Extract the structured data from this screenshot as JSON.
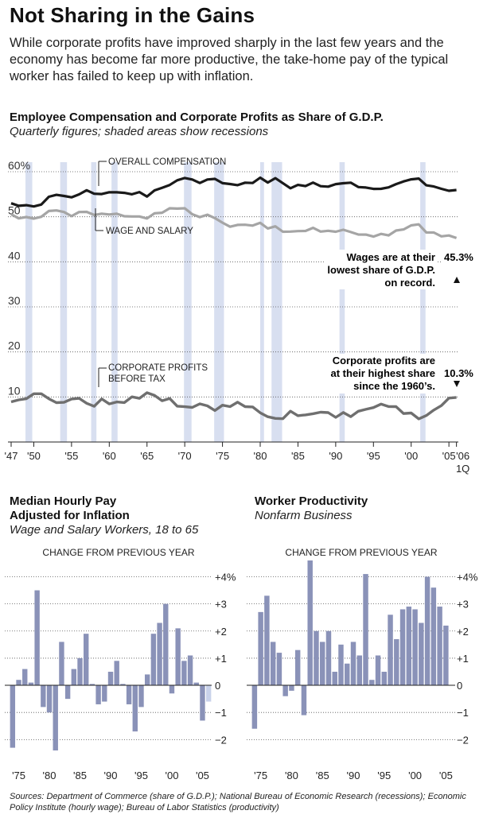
{
  "page": {
    "title": "Not Sharing in the Gains",
    "intro": "While corporate profits have improved sharply in the last few years and the economy has become far more productive, the take-home pay of the typical worker has failed to keep up with inflation.",
    "sources": "Sources: Department of Commerce (share of G.D.P.); National Bureau of Economic Research (recessions); Economic Policy Institute (hourly wage); Bureau of Labor Statistics (productivity)"
  },
  "chart_data": [
    {
      "type": "line",
      "title": "Employee Compensation and Corporate Profits as Share of G.D.P.",
      "subtitle": "Quarterly figures; shaded areas show recessions",
      "xlim": [
        1947,
        2006.25
      ],
      "ylim": [
        0,
        60
      ],
      "ytick_labels": [
        "60%",
        "50",
        "40",
        "30",
        "20",
        "10"
      ],
      "ytick_values": [
        60,
        50,
        40,
        30,
        20,
        10
      ],
      "xtick_values": [
        1947,
        1950,
        1955,
        1960,
        1965,
        1970,
        1975,
        1980,
        1985,
        1990,
        1995,
        2000,
        2005
      ],
      "xtick_labels": [
        "'47",
        "'50",
        "'55",
        "'60",
        "'65",
        "'70",
        "'75",
        "'80",
        "'85",
        "'90",
        "'95",
        "'00",
        "'05"
      ],
      "end_label": "'06",
      "end_sublabel": "1Q",
      "grid": true,
      "recessions": [
        [
          1948.9,
          1949.8
        ],
        [
          1953.5,
          1954.4
        ],
        [
          1957.6,
          1958.3
        ],
        [
          1960.3,
          1961.1
        ],
        [
          1969.9,
          1970.9
        ],
        [
          1973.9,
          1975.2
        ],
        [
          1980.0,
          1980.5
        ],
        [
          1981.5,
          1982.9
        ],
        [
          1990.5,
          1991.2
        ],
        [
          2001.2,
          2001.9
        ]
      ],
      "series": [
        {
          "name": "OVERALL COMPENSATION",
          "color": "#1a1a1a",
          "x": [
            1947,
            1948,
            1949,
            1950,
            1951,
            1952,
            1953,
            1954,
            1955,
            1956,
            1957,
            1958,
            1959,
            1960,
            1961,
            1962,
            1963,
            1964,
            1965,
            1966,
            1967,
            1968,
            1969,
            1970,
            1971,
            1972,
            1973,
            1974,
            1975,
            1976,
            1977,
            1978,
            1979,
            1980,
            1981,
            1982,
            1983,
            1984,
            1985,
            1986,
            1987,
            1988,
            1989,
            1990,
            1991,
            1992,
            1993,
            1994,
            1995,
            1996,
            1997,
            1998,
            1999,
            2000,
            2001,
            2002,
            2003,
            2004,
            2005,
            2006
          ],
          "y": [
            53.0,
            52.3,
            52.8,
            52.0,
            53.0,
            54.2,
            55.0,
            54.6,
            54.2,
            55.2,
            55.6,
            55.4,
            54.8,
            55.6,
            55.4,
            55.2,
            55.2,
            55.2,
            54.8,
            55.6,
            56.6,
            57.0,
            58.0,
            58.8,
            58.0,
            57.8,
            58.0,
            58.6,
            57.4,
            57.2,
            57.2,
            57.3,
            57.8,
            58.4,
            57.8,
            58.5,
            57.4,
            56.5,
            56.8,
            57.1,
            57.3,
            57.0,
            56.6,
            57.2,
            57.6,
            57.3,
            56.9,
            56.2,
            56.4,
            56.1,
            56.5,
            57.4,
            57.6,
            58.6,
            58.2,
            57.2,
            56.6,
            56.2,
            55.9,
            55.7
          ]
        },
        {
          "name": "WAGE AND SALARY",
          "color": "#a5a5a5",
          "x": [
            1947,
            1948,
            1949,
            1950,
            1951,
            1952,
            1953,
            1954,
            1955,
            1956,
            1957,
            1958,
            1959,
            1960,
            1961,
            1962,
            1963,
            1964,
            1965,
            1966,
            1967,
            1968,
            1969,
            1970,
            1971,
            1972,
            1973,
            1974,
            1975,
            1976,
            1977,
            1978,
            1979,
            1980,
            1981,
            1982,
            1983,
            1984,
            1985,
            1986,
            1987,
            1988,
            1989,
            1990,
            1991,
            1992,
            1993,
            1994,
            1995,
            1996,
            1997,
            1998,
            1999,
            2000,
            2001,
            2002,
            2003,
            2004,
            2005,
            2006
          ],
          "y": [
            50.3,
            49.8,
            49.9,
            49.5,
            50.2,
            51.0,
            51.7,
            50.8,
            50.3,
            51.0,
            51.0,
            50.6,
            50.4,
            50.8,
            50.4,
            50.3,
            50.0,
            50.0,
            49.8,
            50.5,
            51.2,
            51.6,
            52.0,
            51.8,
            50.5,
            50.1,
            50.2,
            50.0,
            48.4,
            48.0,
            48.1,
            48.2,
            48.2,
            48.4,
            47.7,
            47.6,
            46.9,
            46.6,
            46.8,
            47.0,
            47.3,
            47.0,
            46.6,
            46.9,
            47.0,
            46.6,
            46.2,
            45.8,
            45.9,
            45.9,
            46.1,
            46.8,
            47.2,
            48.2,
            48.1,
            46.8,
            46.2,
            45.9,
            45.7,
            45.3
          ]
        },
        {
          "name": "CORPORATE PROFITS BEFORE TAX",
          "color": "#6f6f6f",
          "x": [
            1947,
            1948,
            1949,
            1950,
            1951,
            1952,
            1953,
            1954,
            1955,
            1956,
            1957,
            1958,
            1959,
            1960,
            1961,
            1962,
            1963,
            1964,
            1965,
            1966,
            1967,
            1968,
            1969,
            1970,
            1971,
            1972,
            1973,
            1974,
            1975,
            1976,
            1977,
            1978,
            1979,
            1980,
            1981,
            1982,
            1983,
            1984,
            1985,
            1986,
            1987,
            1988,
            1989,
            1990,
            1991,
            1992,
            1993,
            1994,
            1995,
            1996,
            1997,
            1998,
            1999,
            2000,
            2001,
            2002,
            2003,
            2004,
            2005,
            2006
          ],
          "y": [
            8.5,
            9.8,
            9.2,
            11.0,
            10.6,
            9.5,
            9.0,
            8.4,
            10.0,
            9.3,
            8.9,
            7.8,
            9.5,
            8.7,
            8.5,
            9.2,
            9.6,
            10.0,
            10.8,
            10.3,
            9.4,
            9.3,
            8.4,
            7.4,
            8.0,
            8.3,
            8.0,
            7.2,
            7.8,
            8.3,
            8.4,
            8.2,
            7.6,
            6.5,
            5.8,
            4.9,
            5.6,
            6.4,
            6.2,
            5.8,
            6.3,
            6.8,
            6.2,
            5.9,
            6.1,
            6.0,
            6.6,
            7.3,
            7.8,
            8.1,
            8.3,
            7.4,
            6.7,
            6.2,
            5.2,
            6.0,
            6.8,
            8.5,
            9.3,
            10.3
          ]
        }
      ],
      "annotations": {
        "overall_label": "OVERALL COMPENSATION",
        "wage_label": "WAGE AND SALARY",
        "profits_label_1": "CORPORATE PROFITS",
        "profits_label_2": "BEFORE TAX",
        "wages_note_1": "Wages are at their",
        "wages_note_2": "lowest share of G.D.P.",
        "wages_note_3": "on record.",
        "wages_value": "45.3%",
        "profits_note_1": "Corporate profits are",
        "profits_note_2": "at their highest share",
        "profits_note_3": "since the 1960’s.",
        "profits_value": "10.3%"
      }
    },
    {
      "type": "bar",
      "title": "Median Hourly Pay",
      "title2": "Adjusted for Inflation",
      "subtitle": "Wage and Salary Workers, 18 to 65",
      "header": "CHANGE FROM PREVIOUS YEAR",
      "xlim": [
        1973.5,
        2006.5
      ],
      "ylim": [
        -2.4,
        4.6
      ],
      "ytick_values": [
        4,
        3,
        2,
        1,
        0,
        -1,
        -2
      ],
      "ytick_labels": [
        "+4%",
        "+3",
        "+2",
        "+1",
        "0",
        "−1",
        "−2"
      ],
      "xtick_values": [
        1975,
        1980,
        1985,
        1990,
        1995,
        2000,
        2005
      ],
      "xtick_labels": [
        "'75",
        "'80",
        "'85",
        "'90",
        "'95",
        "'00",
        "'05"
      ],
      "x": [
        1974,
        1975,
        1976,
        1977,
        1978,
        1979,
        1980,
        1981,
        1982,
        1983,
        1984,
        1985,
        1986,
        1987,
        1988,
        1989,
        1990,
        1991,
        1992,
        1993,
        1994,
        1995,
        1996,
        1997,
        1998,
        1999,
        2000,
        2001,
        2002,
        2003,
        2004,
        2005
      ],
      "values": [
        -2.3,
        0.2,
        0.6,
        0.1,
        3.5,
        -0.8,
        -1.0,
        -2.4,
        1.6,
        -0.5,
        0.6,
        1.0,
        1.9,
        0.05,
        -0.7,
        -0.6,
        0.5,
        0.9,
        0.05,
        -0.7,
        -1.7,
        -0.8,
        0.4,
        1.9,
        2.3,
        3.0,
        -0.3,
        2.1,
        0.9,
        1.1,
        0.1,
        -1.3
      ],
      "last_value": -0.6,
      "last_value_note": "partial year"
    },
    {
      "type": "bar",
      "title": "Worker Productivity",
      "subtitle": "Nonfarm Business",
      "header": "CHANGE FROM PREVIOUS YEAR",
      "xlim": [
        1973.5,
        2006.5
      ],
      "ylim": [
        -2.4,
        4.6
      ],
      "ytick_values": [
        4,
        3,
        2,
        1,
        0,
        -1,
        -2
      ],
      "ytick_labels": [
        "+4%",
        "+3",
        "+2",
        "+1",
        "0",
        "−1",
        "−2"
      ],
      "xtick_values": [
        1975,
        1980,
        1985,
        1990,
        1995,
        2000,
        2005
      ],
      "xtick_labels": [
        "'75",
        "'80",
        "'85",
        "'90",
        "'95",
        "'00",
        "'05"
      ],
      "x": [
        1974,
        1975,
        1976,
        1977,
        1978,
        1979,
        1980,
        1981,
        1982,
        1983,
        1984,
        1985,
        1986,
        1987,
        1988,
        1989,
        1990,
        1991,
        1992,
        1993,
        1994,
        1995,
        1996,
        1997,
        1998,
        1999,
        2000,
        2001,
        2002,
        2003,
        2004,
        2005
      ],
      "values": [
        -1.6,
        2.7,
        3.3,
        1.6,
        1.2,
        -0.4,
        -0.2,
        1.3,
        -1.1,
        4.6,
        2.0,
        1.6,
        2.0,
        0.5,
        1.5,
        0.8,
        1.6,
        1.1,
        4.1,
        0.2,
        1.1,
        0.5,
        2.6,
        1.7,
        2.8,
        2.9,
        2.8,
        2.3,
        4.0,
        3.6,
        2.9,
        2.2
      ]
    }
  ]
}
